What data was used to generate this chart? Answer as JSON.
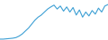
{
  "x": [
    0,
    1,
    2,
    3,
    4,
    5,
    6,
    7,
    8,
    9,
    10,
    11,
    12,
    13,
    14,
    15,
    16,
    17,
    18,
    19,
    20,
    21,
    22,
    23,
    24,
    25,
    26,
    27,
    28,
    29,
    30,
    31,
    32,
    33,
    34
  ],
  "y": [
    0.5,
    0.5,
    0.6,
    0.7,
    0.8,
    1.0,
    1.5,
    2.2,
    3.2,
    4.2,
    5.5,
    6.8,
    7.8,
    8.5,
    9.5,
    10.5,
    11.2,
    11.8,
    10.5,
    11.5,
    9.8,
    11.2,
    9.5,
    11.0,
    8.5,
    10.2,
    7.8,
    9.5,
    8.2,
    10.0,
    8.8,
    10.8,
    9.5,
    11.5,
    12.0
  ],
  "line_color": "#3c9fd4",
  "linewidth": 0.8,
  "background_color": "#ffffff"
}
